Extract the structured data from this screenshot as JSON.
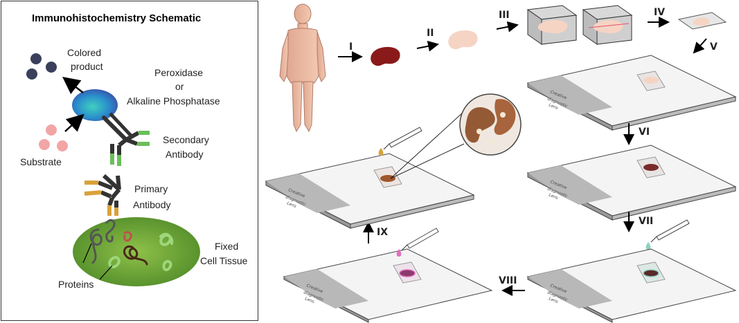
{
  "schematic": {
    "title": "Immunohistochemistry Schematic",
    "labels": {
      "colored_product_1": "Colored",
      "colored_product_2": "product",
      "enzyme_1": "Peroxidase",
      "enzyme_2": "or",
      "enzyme_3": "Alkaline Phosphatase",
      "secondary_1": "Secondary",
      "secondary_2": "Antibody",
      "substrate": "Substrate",
      "primary_1": "Primary",
      "primary_2": "Antibody",
      "fixed_1": "Fixed",
      "fixed_2": "Cell Tissue",
      "proteins": "Proteins"
    },
    "colors": {
      "product": "#3a3f5c",
      "enzyme": "#2c8fb8",
      "substrate": "#f2a5a5",
      "antibody": "#333333",
      "secondary_tip": "#6abf5a",
      "primary_tip": "#d8a23a",
      "tissue": "#6aa23a"
    }
  },
  "process": {
    "steps": [
      "I",
      "II",
      "III",
      "IV",
      "V",
      "VI",
      "VII",
      "VIII",
      "IX"
    ],
    "slide_label_line1": "Creative",
    "slide_label_line2": "diagnostic",
    "slide_label_line3": "Lens"
  }
}
